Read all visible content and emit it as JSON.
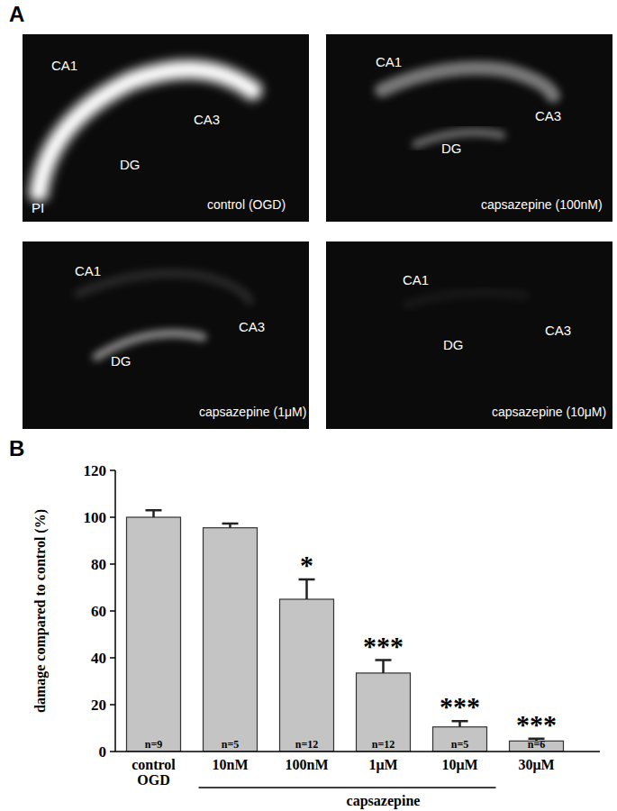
{
  "panel_a": {
    "label": "A",
    "images": [
      {
        "condition": "control (OGD)",
        "regions": [
          "CA1",
          "CA3",
          "DG"
        ],
        "stain": "PI"
      },
      {
        "condition": "capsazepine (100nM)",
        "regions": [
          "CA1",
          "CA3",
          "DG"
        ]
      },
      {
        "condition": "capsazepine (1μM)",
        "regions": [
          "CA1",
          "CA3",
          "DG"
        ]
      },
      {
        "condition": "capsazepine (10μM)",
        "regions": [
          "CA1",
          "CA3",
          "DG"
        ]
      }
    ]
  },
  "chart_data": {
    "type": "bar",
    "panel_label": "B",
    "y_label": "damage compared to control (%)",
    "categories": [
      "control OGD",
      "10nM",
      "100nM",
      "1μM",
      "10μM",
      "30μM"
    ],
    "group_label": "capsazepine",
    "values": [
      100,
      95.5,
      65,
      33.5,
      10.5,
      4.5
    ],
    "errors": [
      3,
      1.8,
      8.5,
      5.5,
      2.5,
      1
    ],
    "significance": [
      null,
      null,
      "*",
      "***",
      "***",
      "***"
    ],
    "n_labels": [
      "n=9",
      "n=5",
      "n=12",
      "n=12",
      "n=5",
      "n=6"
    ],
    "color": "#c4c4c4",
    "ylim": [
      0,
      120
    ],
    "yticks": [
      0,
      20,
      40,
      60,
      80,
      100,
      120
    ],
    "grid": false
  }
}
